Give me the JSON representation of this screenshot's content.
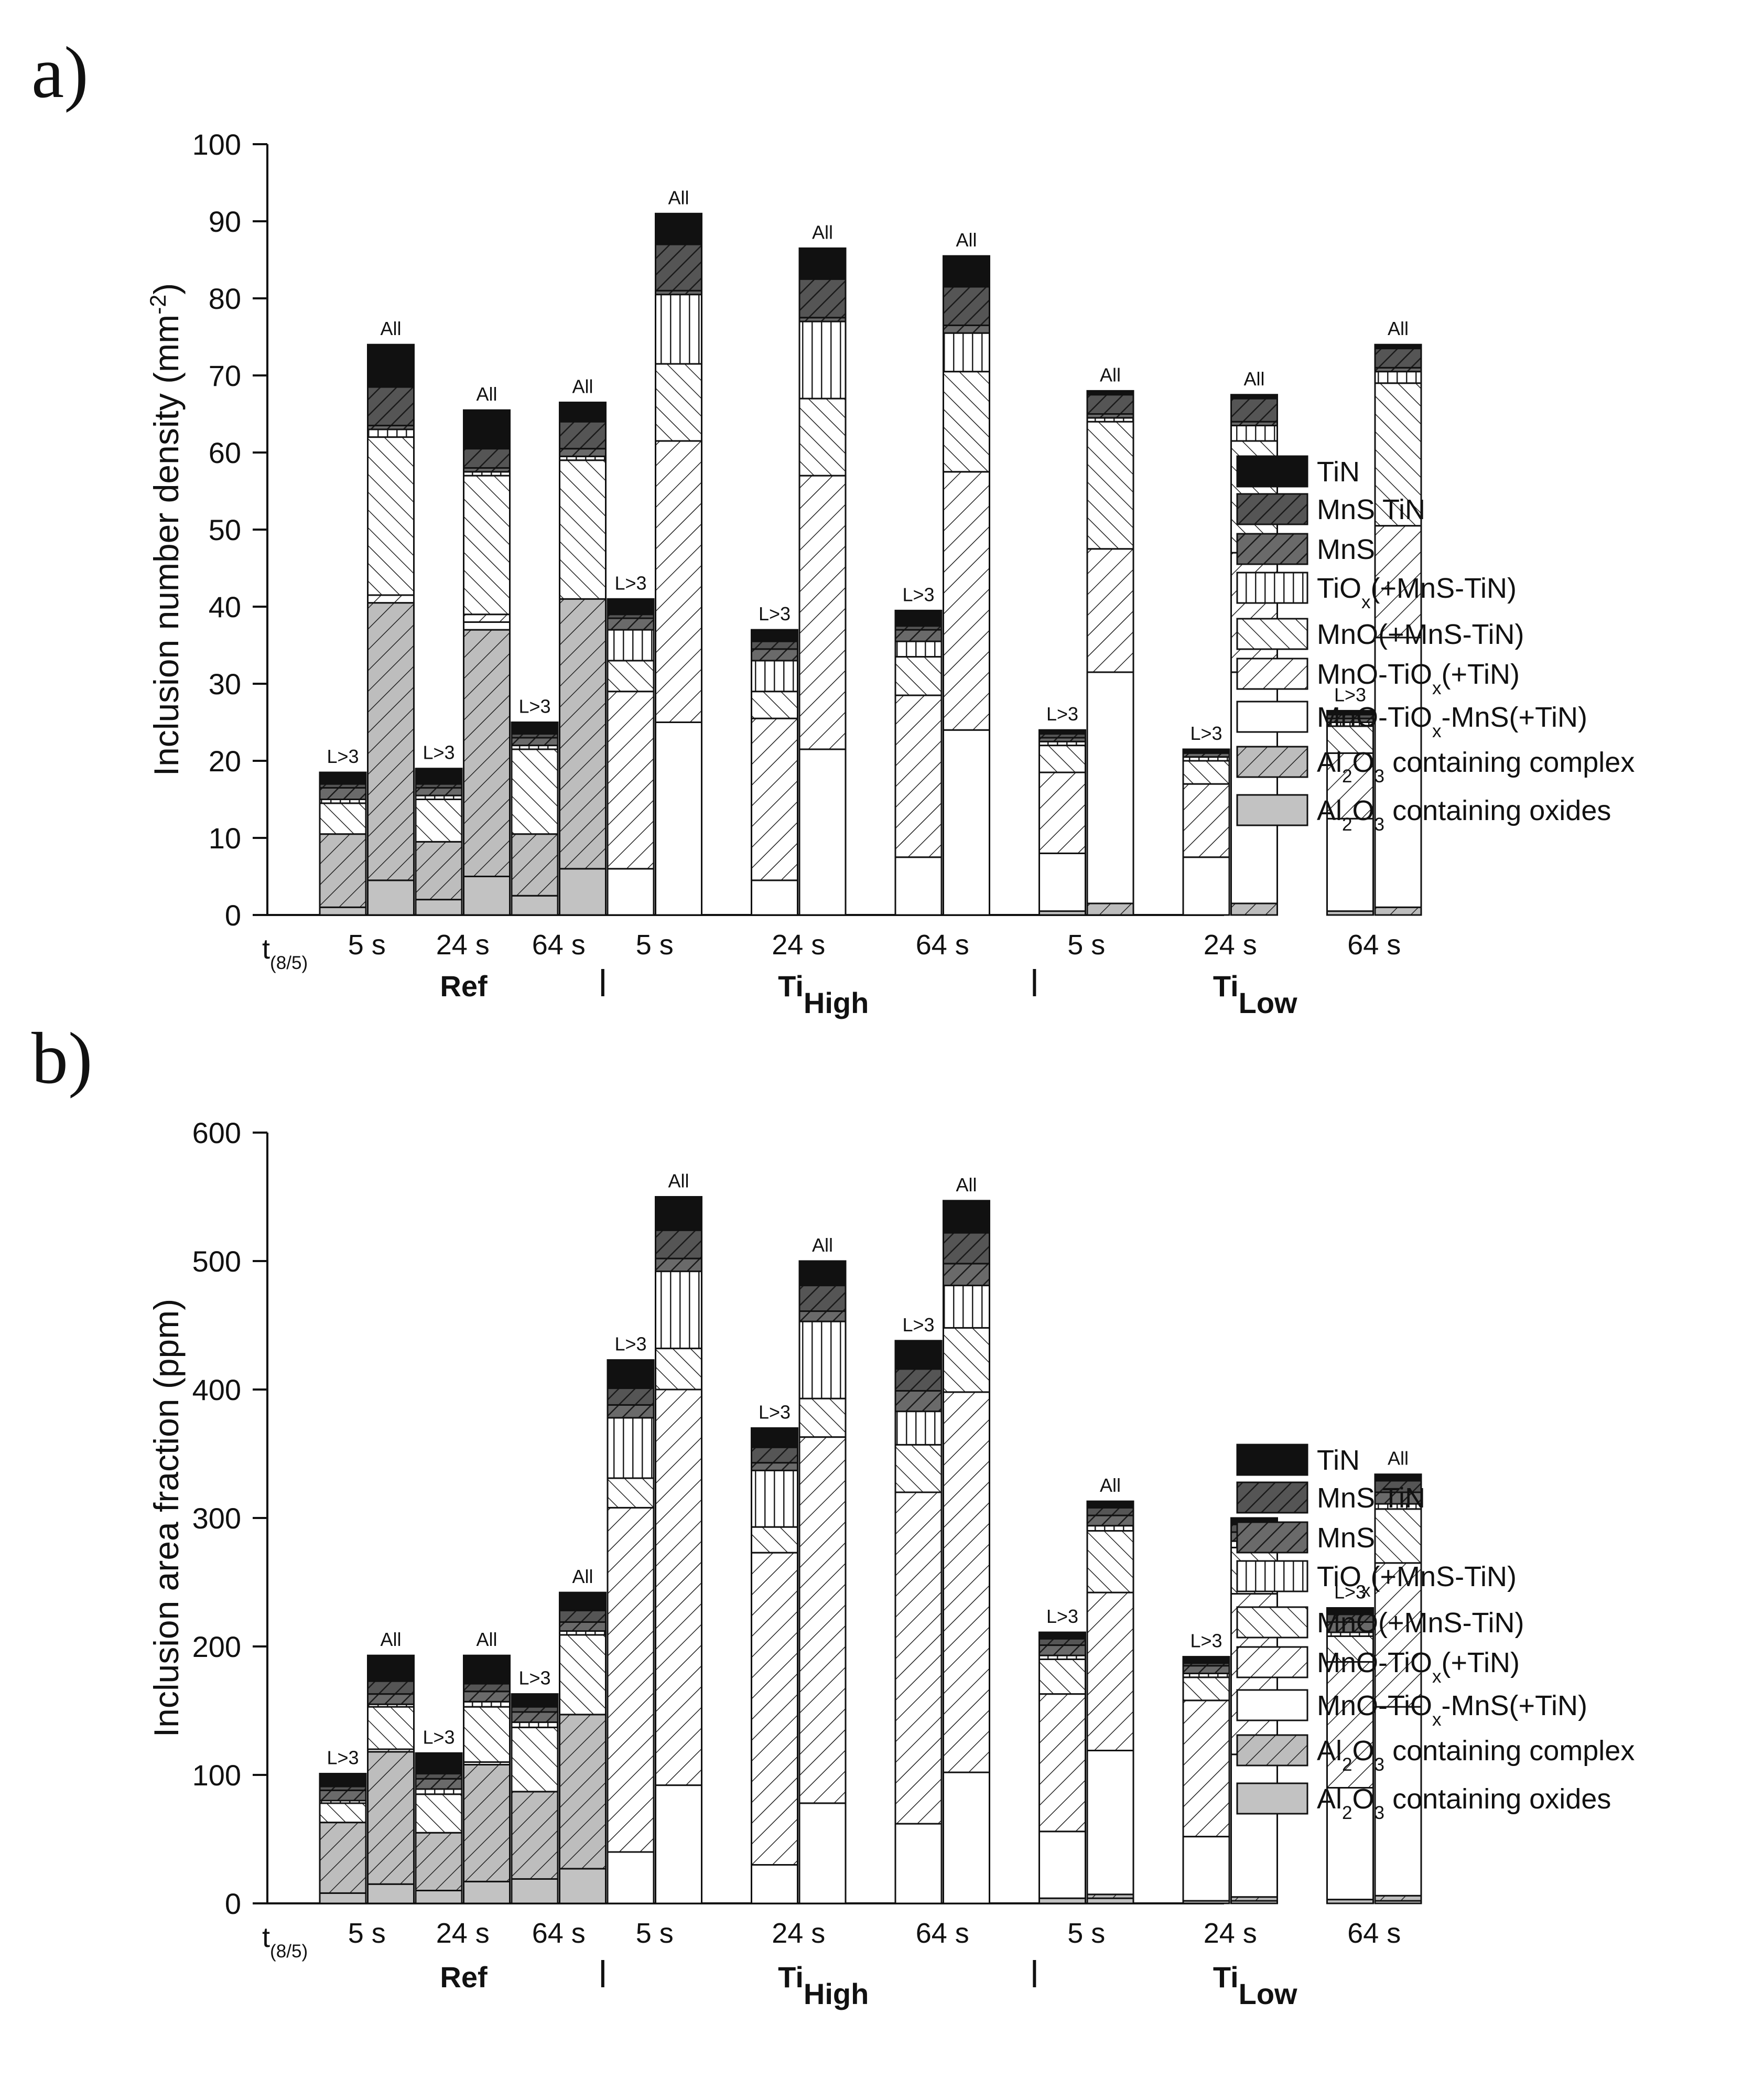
{
  "legend": [
    {
      "key": "tin",
      "label": "TiN",
      "fill": "#111111",
      "pattern": "solid"
    },
    {
      "key": "mnstin",
      "label": "MnS TiN",
      "fill": "#555555",
      "pattern": "hatch-dark"
    },
    {
      "key": "mns",
      "label": "MnS",
      "fill": "#6a6a6a",
      "pattern": "hatch-dark"
    },
    {
      "key": "tiox",
      "label": "TiO",
      "label_sub": "x",
      "label_tail": "(+MnS-TiN)",
      "fill": "#ffffff",
      "pattern": "vertical"
    },
    {
      "key": "mno",
      "label": "MnO(+MnS-TiN)",
      "fill": "#ffffff",
      "pattern": "back-hatch"
    },
    {
      "key": "mnotiox",
      "label": "MnO-TiO",
      "label_sub": "x",
      "label_tail": "(+TiN)",
      "fill": "#ffffff",
      "pattern": "fwd-hatch"
    },
    {
      "key": "mnotioxmns",
      "label": "MnO-TiO",
      "label_sub": "x",
      "label_tail": "-MnS(+TiN)",
      "fill": "#ffffff",
      "pattern": "solid"
    },
    {
      "key": "al2o3complex",
      "label": "Al",
      "label_sub": "2",
      "label_mid": "O",
      "label_sub2": "3",
      "label_tail": " containing complex",
      "fill": "#bdbdbd",
      "pattern": "fwd-hatch"
    },
    {
      "key": "al2o3oxides",
      "label": "Al",
      "label_sub": "2",
      "label_mid": "O",
      "label_sub2": "3",
      "label_tail": " containing oxides",
      "fill": "#c2c2c2",
      "pattern": "solid"
    }
  ],
  "chart_data": [
    {
      "panel": "a)",
      "type": "bar",
      "stacked": true,
      "ylabel": "Inclusion number density (mm",
      "ylabel_sup": "-2",
      "ylabel_tail": ")",
      "ylim": [
        0,
        100
      ],
      "yticks": [
        0,
        10,
        20,
        30,
        40,
        50,
        60,
        70,
        80,
        90,
        100
      ],
      "xprefix": "t",
      "xprefix_sub": "(8/5)",
      "groups": [
        "Ref",
        "Ti",
        "Ti"
      ],
      "group_subs": [
        "",
        "High",
        "Low"
      ],
      "times": [
        "5 s",
        "24 s",
        "64 s",
        "5 s",
        "24 s",
        "64 s",
        "5 s",
        "24 s",
        "64 s"
      ],
      "bars": [
        {
          "pos": 0,
          "label": "L>3",
          "segments": {
            "al2o3oxides": 1,
            "al2o3complex": 9.5,
            "mnotioxmns": 0,
            "mnotiox": 0,
            "mno": 4,
            "tiox": 0.5,
            "mns": 1.5,
            "mnstin": 0.5,
            "tin": 1.5
          }
        },
        {
          "pos": 1,
          "label": "All",
          "segments": {
            "al2o3oxides": 4.5,
            "al2o3complex": 36,
            "mnotioxmns": 0,
            "mnotiox": 1,
            "mno": 20.5,
            "tiox": 1,
            "mns": 0.5,
            "mnstin": 5,
            "tin": 5.5
          }
        },
        {
          "pos": 2,
          "label": "L>3",
          "segments": {
            "al2o3oxides": 2,
            "al2o3complex": 7.5,
            "mnotioxmns": 0,
            "mnotiox": 0,
            "mno": 5.5,
            "tiox": 0.5,
            "mns": 1,
            "mnstin": 0.5,
            "tin": 2
          }
        },
        {
          "pos": 3,
          "label": "All",
          "segments": {
            "al2o3oxides": 5,
            "al2o3complex": 32,
            "mnotioxmns": 1,
            "mnotiox": 1,
            "mno": 18,
            "tiox": 0.5,
            "mns": 0.5,
            "mnstin": 2.5,
            "tin": 5
          }
        },
        {
          "pos": 4,
          "label": "L>3",
          "segments": {
            "al2o3oxides": 2.5,
            "al2o3complex": 8,
            "mnotioxmns": 0,
            "mnotiox": 0,
            "mno": 11,
            "tiox": 0.5,
            "mns": 1,
            "mnstin": 0.5,
            "tin": 1.5
          }
        },
        {
          "pos": 5,
          "label": "All",
          "segments": {
            "al2o3oxides": 6,
            "al2o3complex": 35,
            "mnotioxmns": 0,
            "mnotiox": 0,
            "mno": 18,
            "tiox": 0.5,
            "mns": 1,
            "mnstin": 3.5,
            "tin": 2.5
          }
        },
        {
          "pos": 6,
          "label": "L>3",
          "segments": {
            "al2o3oxides": 0,
            "al2o3complex": 0,
            "mnotioxmns": 6,
            "mnotiox": 23,
            "mno": 4,
            "tiox": 4,
            "mns": 1.5,
            "mnstin": 0.5,
            "tin": 2
          }
        },
        {
          "pos": 7,
          "label": "All",
          "segments": {
            "al2o3oxides": 0,
            "al2o3complex": 0,
            "mnotioxmns": 25,
            "mnotiox": 36.5,
            "mno": 10,
            "tiox": 9,
            "mns": 0.5,
            "mnstin": 6,
            "tin": 4
          }
        },
        {
          "pos": 9,
          "label": "L>3",
          "segments": {
            "al2o3oxides": 0,
            "al2o3complex": 0,
            "mnotioxmns": 4.5,
            "mnotiox": 21,
            "mno": 3.5,
            "tiox": 4,
            "mns": 1.5,
            "mnstin": 1,
            "tin": 1.5
          }
        },
        {
          "pos": 10,
          "label": "All",
          "segments": {
            "al2o3oxides": 0,
            "al2o3complex": 0,
            "mnotioxmns": 21.5,
            "mnotiox": 35.5,
            "mno": 10,
            "tiox": 10,
            "mns": 0.5,
            "mnstin": 5,
            "tin": 4
          }
        },
        {
          "pos": 12,
          "label": "L>3",
          "segments": {
            "al2o3oxides": 0,
            "al2o3complex": 0,
            "mnotioxmns": 7.5,
            "mnotiox": 21,
            "mno": 5,
            "tiox": 2,
            "mns": 1.5,
            "mnstin": 0.5,
            "tin": 2
          }
        },
        {
          "pos": 13,
          "label": "All",
          "segments": {
            "al2o3oxides": 0,
            "al2o3complex": 0,
            "mnotioxmns": 24,
            "mnotiox": 33.5,
            "mno": 13,
            "tiox": 5,
            "mns": 1,
            "mnstin": 5,
            "tin": 4
          }
        },
        {
          "pos": 15,
          "label": "L>3",
          "segments": {
            "al2o3oxides": 0.5,
            "al2o3complex": 0,
            "mnotioxmns": 7.5,
            "mnotiox": 10.5,
            "mno": 3.5,
            "tiox": 0.5,
            "mns": 0.5,
            "mnstin": 0.5,
            "tin": 0.5
          }
        },
        {
          "pos": 16,
          "label": "All",
          "segments": {
            "al2o3oxides": 0,
            "al2o3complex": 1.5,
            "mnotioxmns": 30,
            "mnotiox": 16,
            "mno": 16.5,
            "tiox": 0.5,
            "mns": 0.5,
            "mnstin": 2.5,
            "tin": 0.5
          }
        },
        {
          "pos": 18,
          "label": "L>3",
          "segments": {
            "al2o3oxides": 0,
            "al2o3complex": 0,
            "mnotioxmns": 7.5,
            "mnotiox": 9.5,
            "mno": 3,
            "tiox": 0.5,
            "mns": 0.5,
            "mnstin": 0,
            "tin": 0.5
          }
        },
        {
          "pos": 19,
          "label": "All",
          "segments": {
            "al2o3oxides": 0,
            "al2o3complex": 1.5,
            "mnotioxmns": 30,
            "mnotiox": 15.5,
            "mno": 14.5,
            "tiox": 2,
            "mns": 0.5,
            "mnstin": 3,
            "tin": 0.5
          }
        },
        {
          "pos": 21,
          "label": "L>3",
          "segments": {
            "al2o3oxides": 0.5,
            "al2o3complex": 0,
            "mnotioxmns": 12,
            "mnotiox": 8.5,
            "mno": 3.5,
            "tiox": 0.5,
            "mns": 0.5,
            "mnstin": 0.5,
            "tin": 0.5
          }
        },
        {
          "pos": 22,
          "label": "All",
          "segments": {
            "al2o3oxides": 0,
            "al2o3complex": 1,
            "mnotioxmns": 35,
            "mnotiox": 14.5,
            "mno": 18.5,
            "tiox": 1.5,
            "mns": 0.5,
            "mnstin": 2.5,
            "tin": 0.5
          }
        }
      ]
    },
    {
      "panel": "b)",
      "type": "bar",
      "stacked": true,
      "ylabel": "Inclusion area fraction (ppm)",
      "ylim": [
        0,
        600
      ],
      "yticks": [
        0,
        100,
        200,
        300,
        400,
        500,
        600
      ],
      "xprefix": "t",
      "xprefix_sub": "(8/5)",
      "groups": [
        "Ref",
        "Ti",
        "Ti"
      ],
      "group_subs": [
        "",
        "High",
        "Low"
      ],
      "times": [
        "5 s",
        "24 s",
        "64 s",
        "5 s",
        "24 s",
        "64 s",
        "5 s",
        "24 s",
        "64 s"
      ],
      "bars": [
        {
          "pos": 0,
          "label": "L>3",
          "segments": {
            "al2o3oxides": 8,
            "al2o3complex": 55,
            "mnotioxmns": 0,
            "mnotiox": 0,
            "mno": 15,
            "tiox": 2,
            "mns": 8,
            "mnstin": 3,
            "tin": 10
          }
        },
        {
          "pos": 1,
          "label": "All",
          "segments": {
            "al2o3oxides": 15,
            "al2o3complex": 103,
            "mnotioxmns": 0,
            "mnotiox": 2,
            "mno": 33,
            "tiox": 2,
            "mns": 8,
            "mnstin": 10,
            "tin": 20
          }
        },
        {
          "pos": 2,
          "label": "L>3",
          "segments": {
            "al2o3oxides": 10,
            "al2o3complex": 45,
            "mnotioxmns": 0,
            "mnotiox": 0,
            "mno": 30,
            "tiox": 4,
            "mns": 8,
            "mnstin": 4,
            "tin": 16
          }
        },
        {
          "pos": 3,
          "label": "All",
          "segments": {
            "al2o3oxides": 17,
            "al2o3complex": 91,
            "mnotioxmns": 0,
            "mnotiox": 2,
            "mno": 43,
            "tiox": 4,
            "mns": 8,
            "mnstin": 6,
            "tin": 22
          }
        },
        {
          "pos": 4,
          "label": "L>3",
          "segments": {
            "al2o3oxides": 19,
            "al2o3complex": 68,
            "mnotioxmns": 0,
            "mnotiox": 0,
            "mno": 50,
            "tiox": 4,
            "mns": 8,
            "mnstin": 4,
            "tin": 10
          }
        },
        {
          "pos": 5,
          "label": "All",
          "segments": {
            "al2o3oxides": 27,
            "al2o3complex": 120,
            "mnotioxmns": 0,
            "mnotiox": 0,
            "mno": 62,
            "tiox": 3,
            "mns": 7,
            "mnstin": 9,
            "tin": 14
          }
        },
        {
          "pos": 6,
          "label": "L>3",
          "segments": {
            "al2o3oxides": 0,
            "al2o3complex": 0,
            "mnotioxmns": 40,
            "mnotiox": 268,
            "mno": 23,
            "tiox": 47,
            "mns": 10,
            "mnstin": 13,
            "tin": 22
          }
        },
        {
          "pos": 7,
          "label": "All",
          "segments": {
            "al2o3oxides": 0,
            "al2o3complex": 0,
            "mnotioxmns": 92,
            "mnotiox": 308,
            "mno": 32,
            "tiox": 60,
            "mns": 10,
            "mnstin": 22,
            "tin": 26
          }
        },
        {
          "pos": 9,
          "label": "L>3",
          "segments": {
            "al2o3oxides": 0,
            "al2o3complex": 0,
            "mnotioxmns": 30,
            "mnotiox": 243,
            "mno": 20,
            "tiox": 44,
            "mns": 6,
            "mnstin": 12,
            "tin": 15
          }
        },
        {
          "pos": 10,
          "label": "All",
          "segments": {
            "al2o3oxides": 0,
            "al2o3complex": 0,
            "mnotioxmns": 78,
            "mnotiox": 285,
            "mno": 30,
            "tiox": 60,
            "mns": 8,
            "mnstin": 20,
            "tin": 19
          }
        },
        {
          "pos": 12,
          "label": "L>3",
          "segments": {
            "al2o3oxides": 0,
            "al2o3complex": 0,
            "mnotioxmns": 62,
            "mnotiox": 258,
            "mno": 37,
            "tiox": 26,
            "mns": 16,
            "mnstin": 17,
            "tin": 22
          }
        },
        {
          "pos": 13,
          "label": "All",
          "segments": {
            "al2o3oxides": 0,
            "al2o3complex": 0,
            "mnotioxmns": 102,
            "mnotiox": 296,
            "mno": 50,
            "tiox": 33,
            "mns": 17,
            "mnstin": 24,
            "tin": 25
          }
        },
        {
          "pos": 15,
          "label": "L>3",
          "segments": {
            "al2o3oxides": 4,
            "al2o3complex": 0,
            "mnotioxmns": 52,
            "mnotiox": 107,
            "mno": 27,
            "tiox": 3,
            "mns": 8,
            "mnstin": 5,
            "tin": 5
          }
        },
        {
          "pos": 16,
          "label": "All",
          "segments": {
            "al2o3oxides": 4,
            "al2o3complex": 3,
            "mnotioxmns": 112,
            "mnotiox": 123,
            "mno": 48,
            "tiox": 4,
            "mns": 8,
            "mnstin": 6,
            "tin": 5
          }
        },
        {
          "pos": 18,
          "label": "L>3",
          "segments": {
            "al2o3oxides": 2,
            "al2o3complex": 0,
            "mnotioxmns": 50,
            "mnotiox": 106,
            "mno": 18,
            "tiox": 3,
            "mns": 6,
            "mnstin": 2,
            "tin": 5
          }
        },
        {
          "pos": 19,
          "label": "All",
          "segments": {
            "al2o3oxides": 2,
            "al2o3complex": 3,
            "mnotioxmns": 111,
            "mnotiox": 125,
            "mno": 36,
            "tiox": 5,
            "mns": 7,
            "mnstin": 6,
            "tin": 5
          }
        },
        {
          "pos": 21,
          "label": "L>3",
          "segments": {
            "al2o3oxides": 3,
            "al2o3complex": 0,
            "mnotioxmns": 87,
            "mnotiox": 98,
            "mno": 20,
            "tiox": 3,
            "mns": 8,
            "mnstin": 6,
            "tin": 5
          }
        },
        {
          "pos": 22,
          "label": "All",
          "segments": {
            "al2o3oxides": 2,
            "al2o3complex": 4,
            "mnotioxmns": 147,
            "mnotiox": 112,
            "mno": 42,
            "tiox": 4,
            "mns": 9,
            "mnstin": 9,
            "tin": 5
          }
        }
      ]
    }
  ]
}
